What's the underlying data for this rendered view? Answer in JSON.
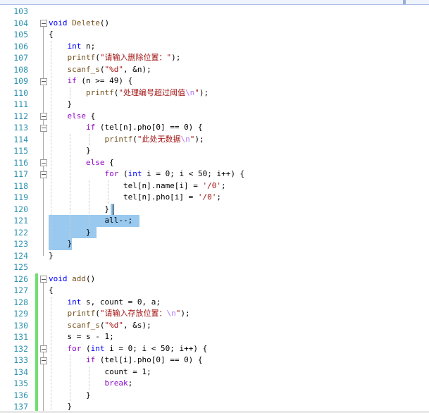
{
  "editor": {
    "first_line": 103,
    "lines": [
      {
        "n": "103",
        "seg": []
      },
      {
        "n": "104",
        "seg": [
          [
            "void",
            "kw"
          ],
          [
            " ",
            ""
          ],
          [
            "Delete",
            "fn"
          ],
          [
            "()",
            ""
          ]
        ]
      },
      {
        "n": "105",
        "seg": [
          [
            "{",
            ""
          ]
        ]
      },
      {
        "n": "106",
        "seg": [
          [
            "    ",
            ""
          ],
          [
            "int",
            "kw"
          ],
          [
            " n;",
            ""
          ]
        ]
      },
      {
        "n": "107",
        "seg": [
          [
            "    ",
            ""
          ],
          [
            "printf",
            "fn"
          ],
          [
            "(",
            ""
          ],
          [
            "\"请输入删除位置：\"",
            "str"
          ],
          [
            ");",
            ""
          ]
        ]
      },
      {
        "n": "108",
        "seg": [
          [
            "    ",
            ""
          ],
          [
            "scanf_s",
            "fn"
          ],
          [
            "(",
            ""
          ],
          [
            "\"%d\"",
            "str"
          ],
          [
            ", &n);",
            ""
          ]
        ]
      },
      {
        "n": "109",
        "seg": [
          [
            "    ",
            ""
          ],
          [
            "if",
            "ctl"
          ],
          [
            " (n >= 49) {",
            ""
          ]
        ]
      },
      {
        "n": "110",
        "seg": [
          [
            "        ",
            ""
          ],
          [
            "printf",
            "fn"
          ],
          [
            "(",
            ""
          ],
          [
            "\"处理编号超过阈值",
            "str"
          ],
          [
            "\\n",
            "esc"
          ],
          [
            "\"",
            "str"
          ],
          [
            ");",
            ""
          ]
        ]
      },
      {
        "n": "111",
        "seg": [
          [
            "    }",
            ""
          ]
        ]
      },
      {
        "n": "112",
        "seg": [
          [
            "    ",
            ""
          ],
          [
            "else",
            "ctl"
          ],
          [
            " {",
            ""
          ]
        ]
      },
      {
        "n": "113",
        "seg": [
          [
            "        ",
            ""
          ],
          [
            "if",
            "ctl"
          ],
          [
            " (tel[n].pho[0] == 0) {",
            ""
          ]
        ]
      },
      {
        "n": "114",
        "seg": [
          [
            "            ",
            ""
          ],
          [
            "printf",
            "fn"
          ],
          [
            "(",
            ""
          ],
          [
            "\"此处无数据",
            "str"
          ],
          [
            "\\n",
            "esc"
          ],
          [
            "\"",
            "str"
          ],
          [
            ");",
            ""
          ]
        ]
      },
      {
        "n": "115",
        "seg": [
          [
            "        }",
            ""
          ]
        ]
      },
      {
        "n": "116",
        "seg": [
          [
            "        ",
            ""
          ],
          [
            "else",
            "ctl"
          ],
          [
            " {",
            ""
          ]
        ]
      },
      {
        "n": "117",
        "seg": [
          [
            "            ",
            ""
          ],
          [
            "for",
            "ctl"
          ],
          [
            " (",
            ""
          ],
          [
            "int",
            "kw"
          ],
          [
            " i = 0; i < 50; i++) {",
            ""
          ]
        ]
      },
      {
        "n": "118",
        "seg": [
          [
            "                tel[n].name[i] = ",
            ""
          ],
          [
            "'/0'",
            "chr"
          ],
          [
            ";",
            ""
          ]
        ]
      },
      {
        "n": "119",
        "seg": [
          [
            "                tel[n].pho[i] = ",
            ""
          ],
          [
            "'/0'",
            "chr"
          ],
          [
            ";",
            ""
          ]
        ]
      },
      {
        "n": "120",
        "seg": [
          [
            "            }",
            ""
          ]
        ]
      },
      {
        "n": "121",
        "seg": [
          [
            "            all--;",
            ""
          ]
        ]
      },
      {
        "n": "122",
        "seg": [
          [
            "        }",
            ""
          ]
        ]
      },
      {
        "n": "123",
        "seg": [
          [
            "    }",
            ""
          ]
        ]
      },
      {
        "n": "124",
        "seg": [
          [
            "}",
            ""
          ]
        ]
      },
      {
        "n": "125",
        "seg": []
      },
      {
        "n": "126",
        "seg": [
          [
            "void",
            "kw"
          ],
          [
            " ",
            ""
          ],
          [
            "add",
            "fn"
          ],
          [
            "()",
            ""
          ]
        ]
      },
      {
        "n": "127",
        "seg": [
          [
            "{",
            ""
          ]
        ]
      },
      {
        "n": "128",
        "seg": [
          [
            "    ",
            ""
          ],
          [
            "int",
            "kw"
          ],
          [
            " s, count = 0, a;",
            ""
          ]
        ]
      },
      {
        "n": "129",
        "seg": [
          [
            "    ",
            ""
          ],
          [
            "printf",
            "fn"
          ],
          [
            "(",
            ""
          ],
          [
            "\"请输入存放位置：",
            "str"
          ],
          [
            "\\n",
            "esc"
          ],
          [
            "\"",
            "str"
          ],
          [
            ");",
            ""
          ]
        ]
      },
      {
        "n": "130",
        "seg": [
          [
            "    ",
            ""
          ],
          [
            "scanf_s",
            "fn"
          ],
          [
            "(",
            ""
          ],
          [
            "\"%d\"",
            "str"
          ],
          [
            ", &s);",
            ""
          ]
        ]
      },
      {
        "n": "131",
        "seg": [
          [
            "    s = s - 1;",
            ""
          ]
        ]
      },
      {
        "n": "132",
        "seg": [
          [
            "    ",
            ""
          ],
          [
            "for",
            "ctl"
          ],
          [
            " (",
            ""
          ],
          [
            "int",
            "kw"
          ],
          [
            " i = 0; i < 50; i++) {",
            ""
          ]
        ]
      },
      {
        "n": "133",
        "seg": [
          [
            "        ",
            ""
          ],
          [
            "if",
            "ctl"
          ],
          [
            " (tel[i].pho[0] == 0) {",
            ""
          ]
        ]
      },
      {
        "n": "134",
        "seg": [
          [
            "            count = 1;",
            ""
          ]
        ]
      },
      {
        "n": "135",
        "seg": [
          [
            "            ",
            ""
          ],
          [
            "break",
            "ctl"
          ],
          [
            ";",
            ""
          ]
        ]
      },
      {
        "n": "136",
        "seg": [
          [
            "        }",
            ""
          ]
        ]
      },
      {
        "n": "137",
        "seg": [
          [
            "    }",
            ""
          ]
        ]
      }
    ],
    "fold_lines": [
      104,
      109,
      112,
      113,
      116,
      117,
      126,
      132,
      133
    ],
    "changed_lines": [
      126,
      137
    ],
    "selection_lines": [
      120,
      123
    ]
  },
  "colors": {
    "selection": "#99c9ef",
    "changed_marker": "#6ee06e",
    "line_number": "#2b91af"
  }
}
